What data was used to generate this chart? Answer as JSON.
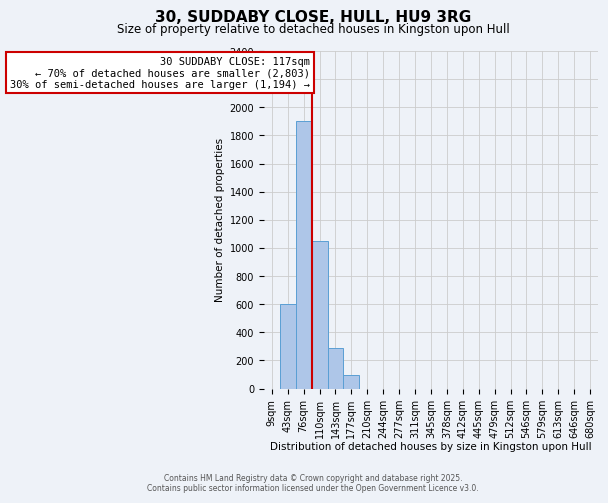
{
  "title": "30, SUDDABY CLOSE, HULL, HU9 3RG",
  "subtitle": "Size of property relative to detached houses in Kingston upon Hull",
  "xlabel": "Distribution of detached houses by size in Kingston upon Hull",
  "ylabel": "Number of detached properties",
  "bar_labels": [
    "9sqm",
    "43sqm",
    "76sqm",
    "110sqm",
    "143sqm",
    "177sqm",
    "210sqm",
    "244sqm",
    "277sqm",
    "311sqm",
    "345sqm",
    "378sqm",
    "412sqm",
    "445sqm",
    "479sqm",
    "512sqm",
    "546sqm",
    "579sqm",
    "613sqm",
    "646sqm",
    "680sqm"
  ],
  "bar_values": [
    0,
    600,
    1900,
    1050,
    290,
    100,
    0,
    0,
    0,
    0,
    0,
    0,
    0,
    0,
    0,
    0,
    0,
    0,
    0,
    0,
    0
  ],
  "bar_color": "#aec6e8",
  "bar_edge_color": "#5a9fd4",
  "red_line_index": 3,
  "annotation_text": "30 SUDDABY CLOSE: 117sqm\n← 70% of detached houses are smaller (2,803)\n30% of semi-detached houses are larger (1,194) →",
  "annotation_box_color": "#ffffff",
  "annotation_box_edge": "#cc0000",
  "vline_color": "#cc0000",
  "ylim": [
    0,
    2400
  ],
  "yticks": [
    0,
    200,
    400,
    600,
    800,
    1000,
    1200,
    1400,
    1600,
    1800,
    2000,
    2200,
    2400
  ],
  "grid_color": "#cccccc",
  "background_color": "#eef2f8",
  "footer_text": "Contains HM Land Registry data © Crown copyright and database right 2025.\nContains public sector information licensed under the Open Government Licence v3.0.",
  "title_fontsize": 11,
  "subtitle_fontsize": 8.5,
  "xlabel_fontsize": 7.5,
  "ylabel_fontsize": 7.5,
  "annotation_fontsize": 7.5,
  "tick_fontsize": 7,
  "footer_fontsize": 5.5
}
